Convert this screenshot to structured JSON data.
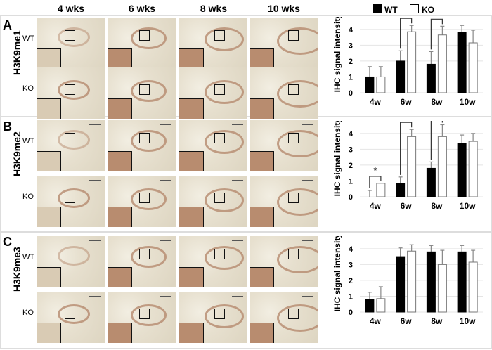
{
  "columns": [
    "4 wks",
    "6 wks",
    "8 wks",
    "10 wks"
  ],
  "legend": {
    "wt": "WT",
    "ko": "KO",
    "wt_color": "#000000",
    "ko_color": "#ffffff"
  },
  "panels": [
    {
      "letter": "A",
      "mark": "H3K9me1",
      "rows": [
        "WT",
        "KO"
      ]
    },
    {
      "letter": "B",
      "mark": "H3K9me2",
      "rows": [
        "WT",
        "KO"
      ]
    },
    {
      "letter": "C",
      "mark": "H3K9me3",
      "rows": [
        "WT",
        "KO"
      ]
    }
  ],
  "chart_data": [
    {
      "type": "bar",
      "ylabel": "IHC signal intensity",
      "categories": [
        "4w",
        "6w",
        "8w",
        "10w"
      ],
      "ylim": [
        0,
        5
      ],
      "yticks": [
        "0",
        "1",
        "2",
        "3",
        "4",
        "5"
      ],
      "grid": true,
      "series": [
        {
          "name": "WT",
          "values": [
            1.0,
            2.0,
            1.8,
            3.8
          ],
          "errors": [
            0.65,
            0.65,
            0.8,
            0.45
          ]
        },
        {
          "name": "KO",
          "values": [
            1.0,
            3.85,
            3.65,
            3.15
          ],
          "errors": [
            0.65,
            0.4,
            0.55,
            0.8
          ]
        }
      ],
      "significance": [
        {
          "category": "6w",
          "label": "*"
        },
        {
          "category": "8w",
          "label": "*"
        }
      ]
    },
    {
      "type": "bar",
      "ylabel": "IHC signal intensity",
      "categories": [
        "4w",
        "6w",
        "8w",
        "10w"
      ],
      "ylim": [
        0,
        5
      ],
      "yticks": [
        "0",
        "1",
        "2",
        "3",
        "4",
        "5"
      ],
      "grid": true,
      "series": [
        {
          "name": "WT",
          "values": [
            0.0,
            0.85,
            1.8,
            3.35
          ],
          "errors": [
            0.4,
            0.4,
            0.4,
            0.55
          ]
        },
        {
          "name": "KO",
          "values": [
            0.85,
            3.8,
            3.8,
            3.5
          ],
          "errors": [
            0,
            0.45,
            0.75,
            0.5
          ]
        }
      ],
      "significance": [
        {
          "category": "4w",
          "label": "*"
        },
        {
          "category": "6w",
          "label": "*"
        },
        {
          "category": "8w",
          "label": "*"
        }
      ]
    },
    {
      "type": "bar",
      "ylabel": "IHC signal intensity",
      "categories": [
        "4w",
        "6w",
        "8w",
        "10w"
      ],
      "ylim": [
        0,
        5
      ],
      "yticks": [
        "0",
        "1",
        "2",
        "3",
        "4",
        "5"
      ],
      "grid": true,
      "series": [
        {
          "name": "WT",
          "values": [
            0.8,
            3.5,
            3.8,
            3.8
          ],
          "errors": [
            0.45,
            0.55,
            0.4,
            0.4
          ]
        },
        {
          "name": "KO",
          "values": [
            0.85,
            3.85,
            3.0,
            3.15
          ],
          "errors": [
            0.75,
            0.4,
            0.9,
            0.75
          ]
        }
      ],
      "significance": []
    }
  ]
}
